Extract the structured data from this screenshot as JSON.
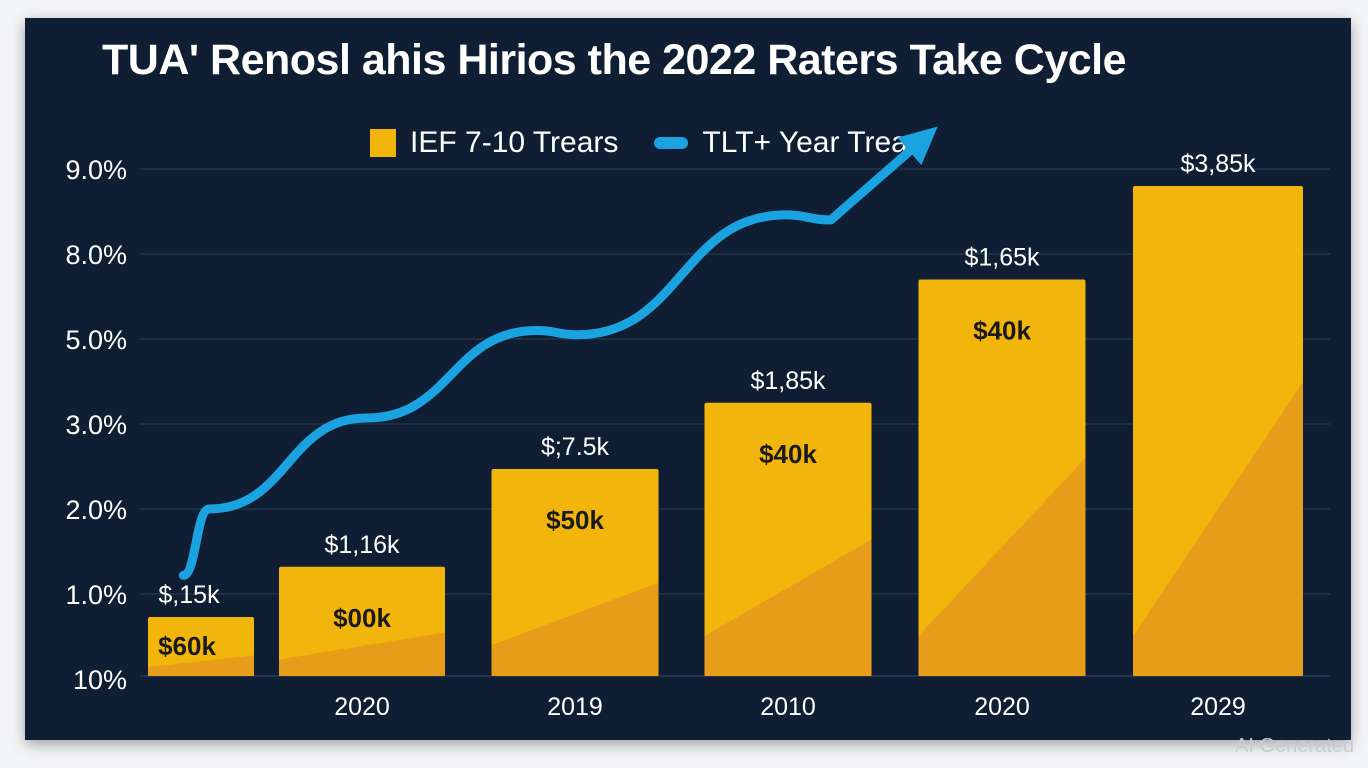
{
  "chart_data": {
    "type": "bar",
    "title": "TUA' Renosl ahis Hirios the 2022 Raters Take Cycle",
    "legend": {
      "placement": "top-center",
      "entries": [
        "IEF 7-10 Trears",
        "TLT+ Year Treas"
      ]
    },
    "categories": [
      "",
      "2020",
      "2019",
      "2010",
      "2020",
      "2029"
    ],
    "y_ticks": [
      "10%",
      "1.0%",
      "2.0%",
      "3.0%",
      "5.0%",
      "8.0%",
      "9.0%"
    ],
    "grid": true,
    "series": [
      {
        "name": "IEF 7-10 Trears",
        "type": "bar",
        "values": [
          0.73,
          1.32,
          2.47,
          3.5,
          7.1,
          8.8
        ],
        "top_labels": [
          "$,15k",
          "$1,16k",
          "$;7.5k",
          "$1,85k",
          "$1,65k",
          "$3,85k"
        ],
        "inner_labels": [
          "$60k",
          "$00k",
          "$50k",
          "$40k",
          "$40k",
          ""
        ]
      },
      {
        "name": "TLT+ Year Treas",
        "type": "line",
        "arrow_end": true,
        "x": [
          -0.11,
          0.05,
          1.02,
          1.82,
          2.01,
          2.99,
          3.2,
          3.7
        ],
        "values": [
          1.22,
          2.0,
          3.14,
          5.3,
          5.15,
          8.46,
          8.4,
          9.5
        ]
      }
    ],
    "colors": {
      "background": "#0f1e33",
      "bar": "#f2b50c",
      "bar_shade": "#e69a1c",
      "line": "#1aa3e0",
      "grid": "#233349"
    }
  },
  "watermark": "AI Generated"
}
